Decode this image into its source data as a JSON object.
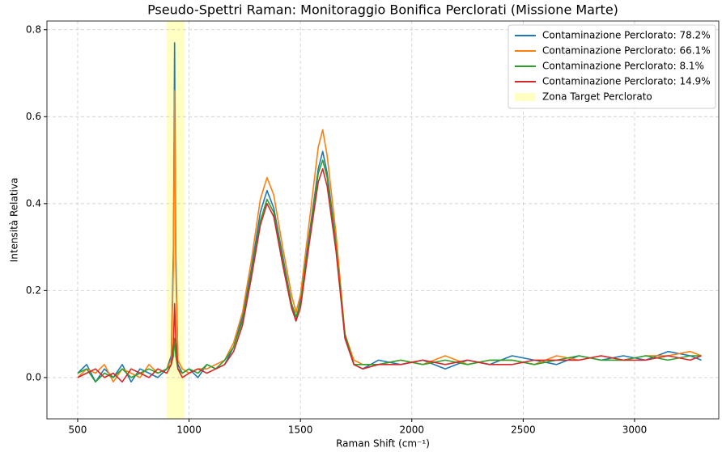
{
  "chart_data": {
    "type": "line",
    "title": "Pseudo-Spettri Raman: Monitoraggio Bonifica Perclorati (Missione Marte)",
    "x_label": "Raman Shift (cm⁻¹)",
    "y_label": "Intensità Relativa",
    "x": [
      500,
      540,
      580,
      620,
      660,
      700,
      740,
      780,
      820,
      860,
      900,
      920,
      930,
      935,
      940,
      950,
      970,
      1000,
      1040,
      1080,
      1120,
      1160,
      1200,
      1240,
      1280,
      1320,
      1350,
      1380,
      1420,
      1460,
      1480,
      1500,
      1540,
      1580,
      1600,
      1620,
      1660,
      1700,
      1740,
      1780,
      1850,
      1950,
      2050,
      2150,
      2250,
      2350,
      2450,
      2550,
      2650,
      2750,
      2850,
      2950,
      3050,
      3150,
      3250,
      3300
    ],
    "series": [
      {
        "name": "Contaminazione Perclorato: 78.2%",
        "color": "#1f77b4",
        "values": [
          0.01,
          0.03,
          -0.01,
          0.02,
          0.0,
          0.03,
          -0.01,
          0.02,
          0.01,
          0.0,
          0.02,
          0.05,
          0.3,
          0.77,
          0.3,
          0.03,
          0.01,
          0.02,
          0.0,
          0.03,
          0.02,
          0.03,
          0.07,
          0.14,
          0.25,
          0.38,
          0.43,
          0.39,
          0.28,
          0.17,
          0.13,
          0.18,
          0.33,
          0.48,
          0.52,
          0.47,
          0.31,
          0.09,
          0.03,
          0.02,
          0.04,
          0.03,
          0.04,
          0.02,
          0.04,
          0.03,
          0.05,
          0.04,
          0.03,
          0.05,
          0.04,
          0.05,
          0.04,
          0.06,
          0.05,
          0.04
        ]
      },
      {
        "name": "Contaminazione Perclorato: 66.1%",
        "color": "#ff7f0e",
        "values": [
          0.0,
          0.02,
          0.01,
          0.03,
          -0.01,
          0.02,
          0.01,
          0.0,
          0.03,
          0.01,
          0.02,
          0.04,
          0.26,
          0.66,
          0.26,
          0.04,
          0.02,
          0.01,
          0.02,
          0.02,
          0.03,
          0.04,
          0.08,
          0.15,
          0.27,
          0.41,
          0.46,
          0.42,
          0.3,
          0.19,
          0.15,
          0.19,
          0.36,
          0.53,
          0.57,
          0.51,
          0.33,
          0.1,
          0.04,
          0.03,
          0.03,
          0.04,
          0.03,
          0.05,
          0.03,
          0.04,
          0.04,
          0.03,
          0.05,
          0.04,
          0.05,
          0.04,
          0.05,
          0.05,
          0.06,
          0.05
        ]
      },
      {
        "name": "Contaminazione Perclorato: 8.1%",
        "color": "#2ca02c",
        "values": [
          0.01,
          0.02,
          -0.01,
          0.01,
          0.0,
          0.02,
          0.0,
          0.01,
          0.02,
          0.01,
          0.02,
          0.03,
          0.05,
          0.09,
          0.05,
          0.02,
          0.01,
          0.02,
          0.01,
          0.03,
          0.02,
          0.04,
          0.07,
          0.13,
          0.24,
          0.36,
          0.41,
          0.38,
          0.27,
          0.17,
          0.14,
          0.17,
          0.32,
          0.47,
          0.5,
          0.46,
          0.3,
          0.1,
          0.03,
          0.03,
          0.03,
          0.04,
          0.03,
          0.04,
          0.03,
          0.04,
          0.04,
          0.03,
          0.04,
          0.05,
          0.04,
          0.04,
          0.05,
          0.04,
          0.05,
          0.05
        ]
      },
      {
        "name": "Contaminazione Perclorato: 14.9%",
        "color": "#d62728",
        "values": [
          0.0,
          0.01,
          0.02,
          0.0,
          0.01,
          -0.01,
          0.02,
          0.01,
          0.0,
          0.02,
          0.01,
          0.03,
          0.08,
          0.17,
          0.09,
          0.02,
          0.0,
          0.01,
          0.02,
          0.01,
          0.02,
          0.03,
          0.06,
          0.12,
          0.23,
          0.35,
          0.4,
          0.37,
          0.26,
          0.16,
          0.13,
          0.16,
          0.31,
          0.45,
          0.48,
          0.44,
          0.29,
          0.09,
          0.03,
          0.02,
          0.03,
          0.03,
          0.04,
          0.03,
          0.04,
          0.03,
          0.03,
          0.04,
          0.04,
          0.04,
          0.05,
          0.04,
          0.04,
          0.05,
          0.04,
          0.05
        ]
      }
    ],
    "target_zone": {
      "label": "Zona Target Perclorato",
      "range": [
        900,
        980
      ],
      "color": "#ffff99"
    },
    "xlim": [
      362,
      3378
    ],
    "ylim": [
      -0.095,
      0.82
    ],
    "xticks": [
      500,
      1000,
      1500,
      2000,
      2500,
      3000
    ],
    "yticks": [
      {
        "value": 0,
        "label": "0.0"
      },
      0.2,
      0.4,
      0.6,
      0.8
    ],
    "grid": true,
    "legend": "upper right"
  }
}
